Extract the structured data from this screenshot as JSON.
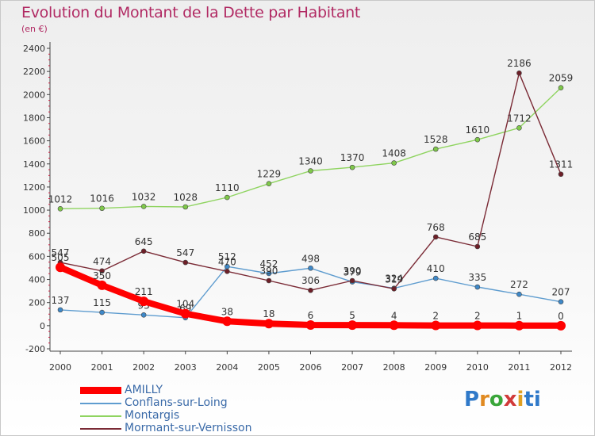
{
  "header": {
    "title": "Evolution du Montant de la Dette par Habitant",
    "unit": "(en €)"
  },
  "logo": {
    "text": "Proxiti"
  },
  "chart_data": {
    "type": "line",
    "title": "Evolution du Montant de la Dette par Habitant",
    "subtitle": "(en €)",
    "xlabel": "",
    "ylabel": "",
    "ylim": [
      -200,
      2400
    ],
    "ytick_step": 200,
    "grid": false,
    "legend_position": "bottom-left",
    "categories": [
      "2000",
      "2001",
      "2002",
      "2003",
      "2004",
      "2005",
      "2006",
      "2007",
      "2008",
      "2009",
      "2010",
      "2011",
      "2012"
    ],
    "series": [
      {
        "name": "AMILLY",
        "color": "#ff0000",
        "thick": true,
        "values": [
          505,
          350,
          211,
          104,
          38,
          18,
          6,
          5,
          4,
          2,
          2,
          1,
          0
        ],
        "labels": [
          "505",
          "350",
          "211",
          "104",
          "38",
          "18",
          "6",
          "5",
          "4",
          "2",
          "2",
          "1",
          "0"
        ]
      },
      {
        "name": "Conflans-sur-Loing",
        "color": "#5e9ccf",
        "point": "#3e88c8",
        "values": [
          137,
          115,
          93,
          69,
          512,
          452,
          498,
          379,
          324,
          410,
          335,
          272,
          207
        ],
        "labels": [
          "137",
          "115",
          "93",
          "69",
          "512",
          "452",
          "498",
          "379",
          "324",
          "410",
          "335",
          "272",
          "207"
        ]
      },
      {
        "name": "Montargis",
        "color": "#8fd460",
        "point": "#7fc84a",
        "values": [
          1012,
          1016,
          1032,
          1028,
          1110,
          1229,
          1340,
          1370,
          1408,
          1528,
          1610,
          1712,
          2059
        ],
        "labels": [
          "1012",
          "1016",
          "1032",
          "1028",
          "1110",
          "1229",
          "1340",
          "1370",
          "1408",
          "1528",
          "1610",
          "1712",
          "2059"
        ]
      },
      {
        "name": "Mormant-sur-Vernisson",
        "color": "#7a2a35",
        "point": "#6e1f28",
        "values": [
          547,
          474,
          645,
          547,
          470,
          390,
          306,
          390,
          319,
          768,
          685,
          2186,
          1311
        ],
        "labels": [
          "547",
          "474",
          "645",
          "547",
          "470",
          "390",
          "306",
          "390",
          "319",
          "768",
          "685",
          "2186",
          "1311"
        ]
      }
    ]
  }
}
